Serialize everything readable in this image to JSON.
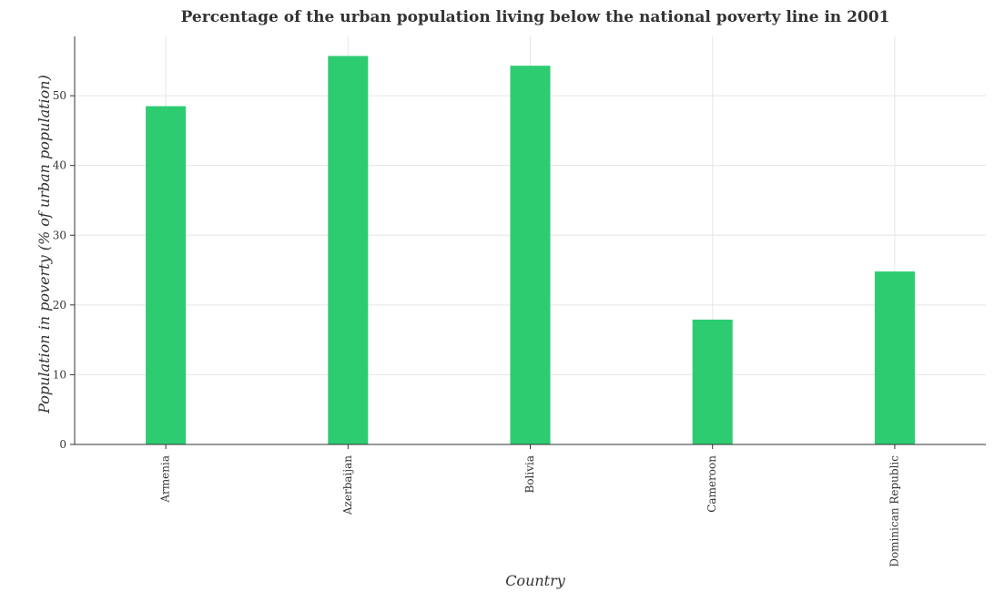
{
  "chart_data": {
    "type": "bar",
    "title": "Percentage of the urban population living below the national poverty line in 2001",
    "xlabel": "Country",
    "ylabel": "Population in poverty (% of urban population)",
    "categories": [
      "Armenia",
      "Azerbaijan",
      "Bolivia",
      "Cameroon",
      "Dominican Republic"
    ],
    "values": [
      48.5,
      55.7,
      54.3,
      17.9,
      24.8
    ],
    "ylim": [
      0,
      58.5
    ],
    "yticks": [
      0,
      10,
      20,
      30,
      40,
      50
    ],
    "grid": true,
    "legend": "none",
    "bar_color": "#2ecc71"
  }
}
